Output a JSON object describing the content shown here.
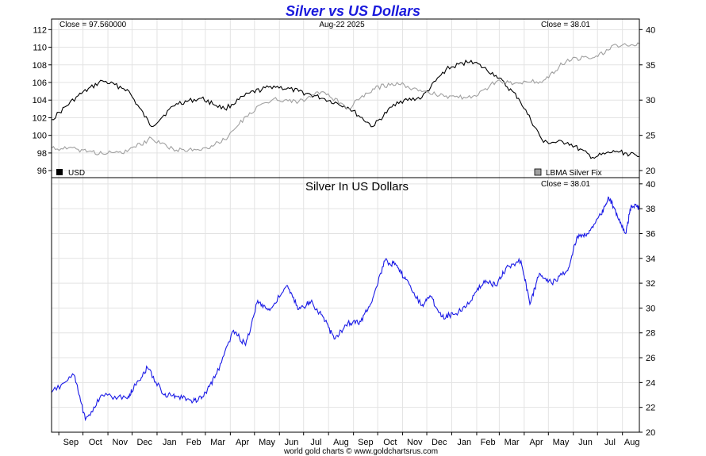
{
  "chart_data": [
    {
      "type": "line",
      "title": "Silver vs US Dollars",
      "date_label": "Aug-22  2025",
      "left_close_label": "Close = 97.560000",
      "right_close_label": "Close = 38.01",
      "x_ticks": [
        "Sep",
        "Oct",
        "Nov",
        "Dec",
        "Jan",
        "Feb",
        "Mar",
        "Apr",
        "May",
        "Jun",
        "Jul",
        "Aug",
        "Sep",
        "Oct",
        "Nov",
        "Dec",
        "Jan",
        "Feb",
        "Mar",
        "Apr",
        "May",
        "Jun",
        "Jul",
        "Aug"
      ],
      "y_left_ticks": [
        "96",
        "98",
        "100",
        "102",
        "104",
        "106",
        "108",
        "110",
        "112"
      ],
      "y_right_ticks": [
        "20",
        "25",
        "30",
        "35",
        "40"
      ],
      "y_left_lim": [
        95.2,
        113.2
      ],
      "y_right_lim": [
        19,
        41.5
      ],
      "legend": [
        "USD",
        "LBMA Silver Fix"
      ],
      "legend_placement": "bottom",
      "grid": true,
      "x_dates": [
        "2023-08-23",
        "2023-09-25",
        "2023-10-25",
        "2023-11-25",
        "2023-12-25",
        "2024-01-25",
        "2024-02-25",
        "2024-03-25",
        "2024-04-25",
        "2024-05-25",
        "2024-06-25",
        "2024-07-25",
        "2024-08-25",
        "2024-09-25",
        "2024-10-25",
        "2024-11-25",
        "2024-12-25",
        "2025-01-25",
        "2025-02-25",
        "2025-03-25",
        "2025-04-25",
        "2025-05-25",
        "2025-06-25",
        "2025-07-25",
        "2025-08-22"
      ],
      "series": [
        {
          "name": "USD",
          "axis": "left",
          "color": "#000000",
          "values": [
            101.8,
            104.5,
            106.2,
            105.2,
            101.0,
            103.6,
            104.2,
            103.0,
            104.8,
            105.6,
            105.0,
            104.2,
            103.2,
            101.0,
            103.8,
            104.3,
            107.5,
            108.5,
            106.8,
            104.2,
            99.2,
            99.2,
            97.5,
            98.2,
            97.6
          ]
        },
        {
          "name": "LBMA Silver Fix",
          "axis": "right",
          "color": "#a0a0a0",
          "values": [
            23.2,
            23.0,
            22.4,
            22.7,
            24.6,
            22.9,
            22.9,
            24.4,
            28.2,
            30.2,
            29.8,
            31.2,
            28.8,
            31.6,
            32.5,
            31.2,
            30.6,
            30.3,
            32.6,
            32.4,
            32.8,
            35.8,
            36.0,
            37.8,
            38.01
          ]
        }
      ]
    },
    {
      "type": "line",
      "title": "Silver In US Dollars",
      "close_label": "Close = 38.01",
      "x_ticks": [
        "Sep",
        "Oct",
        "Nov",
        "Dec",
        "Jan",
        "Feb",
        "Mar",
        "Apr",
        "May",
        "Jun",
        "Jul",
        "Aug",
        "Sep",
        "Oct",
        "Nov",
        "Dec",
        "Jan",
        "Feb",
        "Mar",
        "Apr",
        "May",
        "Jun",
        "Jul",
        "Aug"
      ],
      "y_ticks": [
        "20",
        "22",
        "24",
        "26",
        "28",
        "30",
        "32",
        "34",
        "36",
        "38",
        "40"
      ],
      "ylim": [
        20,
        40.5
      ],
      "grid": true,
      "series": [
        {
          "color": "#1a1ae6",
          "x_dates": [
            "2023-08-23",
            "2023-09-20",
            "2023-10-04",
            "2023-10-25",
            "2023-11-25",
            "2023-12-05",
            "2023-12-20",
            "2024-01-10",
            "2024-01-25",
            "2024-02-15",
            "2024-02-28",
            "2024-03-15",
            "2024-04-05",
            "2024-04-20",
            "2024-05-05",
            "2024-05-20",
            "2024-06-10",
            "2024-06-25",
            "2024-07-10",
            "2024-07-25",
            "2024-08-08",
            "2024-08-25",
            "2024-09-10",
            "2024-09-25",
            "2024-10-10",
            "2024-10-22",
            "2024-11-05",
            "2024-11-25",
            "2024-12-05",
            "2024-12-20",
            "2025-01-05",
            "2025-01-25",
            "2025-02-10",
            "2025-02-25",
            "2025-03-10",
            "2025-03-28",
            "2025-04-08",
            "2025-04-20",
            "2025-05-05",
            "2025-05-25",
            "2025-06-06",
            "2025-06-20",
            "2025-07-05",
            "2025-07-15",
            "2025-07-25",
            "2025-08-05",
            "2025-08-12",
            "2025-08-22"
          ],
          "values": [
            23.2,
            24.6,
            21.0,
            23.0,
            22.7,
            23.8,
            25.2,
            23.0,
            22.9,
            22.5,
            22.9,
            24.7,
            28.2,
            27.0,
            30.6,
            29.8,
            31.8,
            29.9,
            30.5,
            29.3,
            27.5,
            28.8,
            28.9,
            30.8,
            33.8,
            33.5,
            32.3,
            30.2,
            31.0,
            29.3,
            29.5,
            30.6,
            32.2,
            31.8,
            33.3,
            33.8,
            30.3,
            32.8,
            32.0,
            33.0,
            35.8,
            36.0,
            37.5,
            38.9,
            37.6,
            36.0,
            38.3,
            38.01
          ]
        }
      ]
    }
  ],
  "footer": "world gold charts © www.goldchartsrus.com"
}
